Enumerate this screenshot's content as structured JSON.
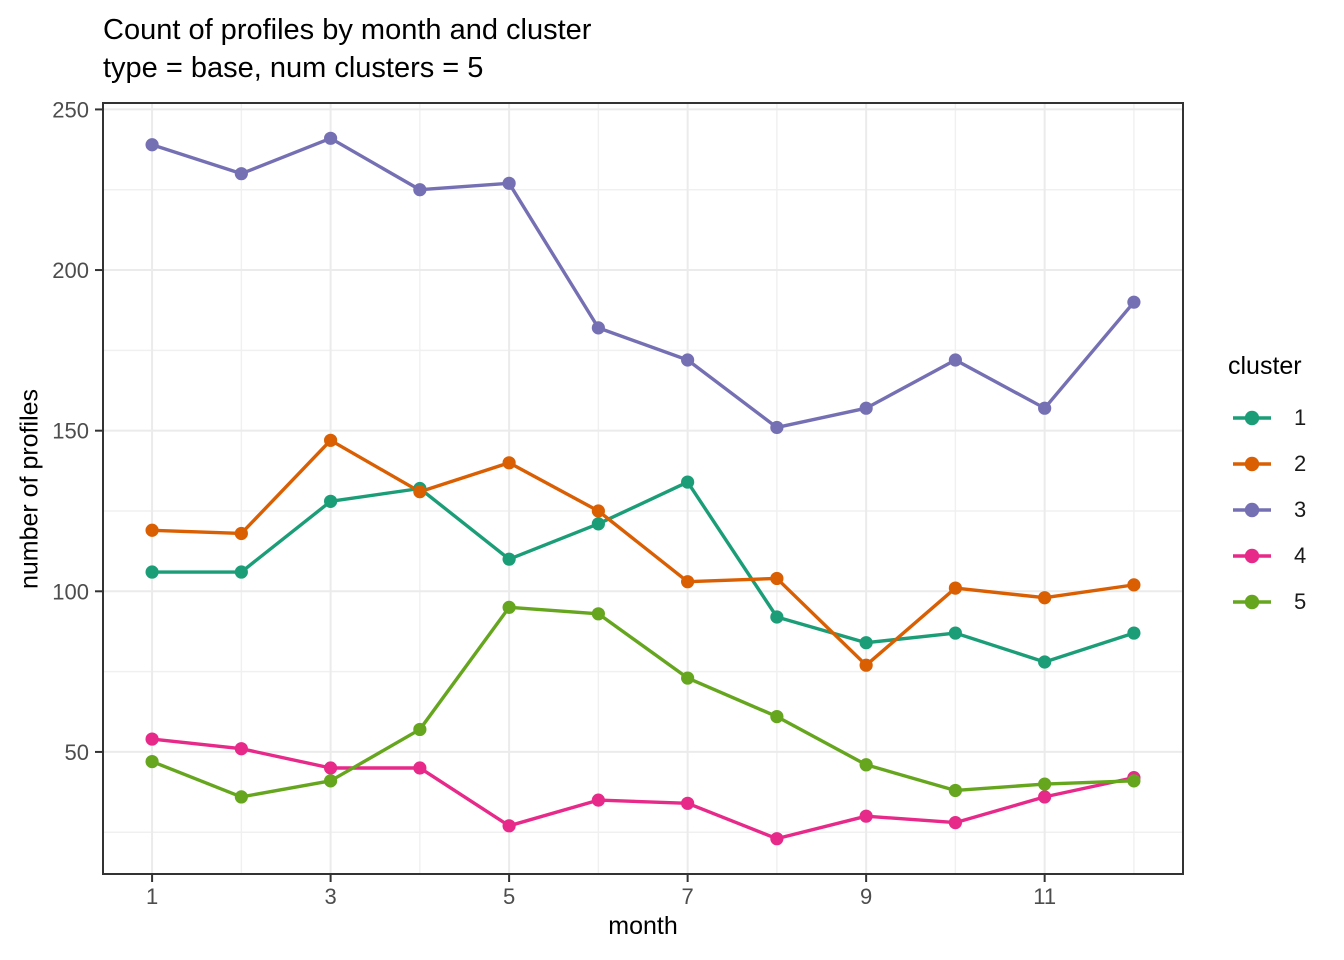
{
  "figure": {
    "background": "#ffffff"
  },
  "chart_data": {
    "type": "line",
    "title": "Count of profiles by month and cluster",
    "subtitle": "type = base, num clusters = 5",
    "xlabel": "month",
    "ylabel": "number of profiles",
    "x": [
      1,
      2,
      3,
      4,
      5,
      6,
      7,
      8,
      9,
      10,
      11,
      12
    ],
    "series": [
      {
        "name": "1",
        "color": "#1B9E77",
        "values": [
          106,
          106,
          128,
          132,
          110,
          121,
          134,
          92,
          84,
          87,
          78,
          87
        ]
      },
      {
        "name": "2",
        "color": "#D95F02",
        "values": [
          119,
          118,
          147,
          131,
          140,
          125,
          103,
          104,
          77,
          101,
          98,
          102
        ]
      },
      {
        "name": "3",
        "color": "#7570B3",
        "values": [
          239,
          230,
          241,
          225,
          227,
          182,
          172,
          151,
          157,
          172,
          157,
          190
        ]
      },
      {
        "name": "4",
        "color": "#E7298A",
        "values": [
          54,
          51,
          45,
          45,
          27,
          35,
          34,
          23,
          30,
          28,
          36,
          42
        ]
      },
      {
        "name": "5",
        "color": "#66A61E",
        "values": [
          47,
          36,
          41,
          57,
          95,
          93,
          73,
          61,
          46,
          38,
          40,
          41
        ]
      }
    ],
    "x_ticks": [
      1,
      3,
      5,
      7,
      9,
      11
    ],
    "x_minor_ticks": [
      2,
      4,
      6,
      8,
      10,
      12
    ],
    "y_ticks": [
      50,
      100,
      150,
      200,
      250
    ],
    "y_minor_ticks": [
      25,
      75,
      125,
      175,
      225
    ],
    "x_domain": [
      0.45,
      12.55
    ],
    "y_domain": [
      12,
      252
    ],
    "grid": true,
    "legend": {
      "title": "cluster",
      "position": "right"
    }
  },
  "theme": {
    "grid_major_color": "#EBEBEB",
    "grid_minor_color": "#F0F0F0",
    "panel_border_color": "#333333",
    "tick_color": "#333333",
    "tick_label_color": "#4D4D4D",
    "text_color": "#000000",
    "panel_background": "#FFFFFF"
  }
}
